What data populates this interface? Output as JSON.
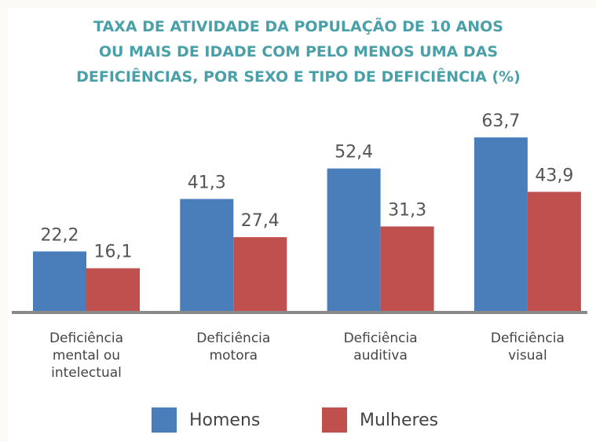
{
  "chart_data": {
    "type": "bar",
    "title": "TAXA DE ATIVIDADE DA POPULAÇÃO DE 10 ANOS\nOU MAIS DE IDADE COM PELO MENOS UMA DAS\nDEFICIÊNCIAS, POR SEXO E TIPO DE DEFICIÊNCIA (%)",
    "categories": [
      "Deficiência\nmental ou\nintelectual",
      "Deficiência\nmotora",
      "Deficiência\nauditiva",
      "Deficiência\nvisual"
    ],
    "series": [
      {
        "name": "Homens",
        "color": "#4a7ebb",
        "values": [
          22.2,
          41.3,
          52.4,
          63.7
        ],
        "value_labels": [
          "22,2",
          "41,3",
          "52,4",
          "63,7"
        ]
      },
      {
        "name": "Mulheres",
        "color": "#c0504d",
        "values": [
          16.1,
          27.4,
          31.3,
          43.9
        ],
        "value_labels": [
          "16,1",
          "27,4",
          "31,3",
          "43,9"
        ]
      }
    ],
    "ylim": [
      0,
      68
    ]
  }
}
